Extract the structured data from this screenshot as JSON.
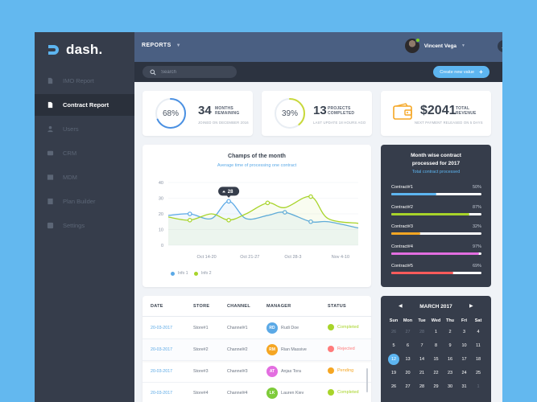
{
  "app": {
    "logo_text": "dash."
  },
  "sidebar": {
    "items": [
      {
        "label": "IMO Report",
        "icon": "document-icon",
        "active": false
      },
      {
        "label": "Contract Report",
        "icon": "document-icon",
        "active": true
      },
      {
        "label": "Users",
        "icon": "user-icon",
        "active": false
      },
      {
        "label": "CRM",
        "icon": "crm-icon",
        "active": false
      },
      {
        "label": "MDM",
        "icon": "mdm-icon",
        "active": false
      },
      {
        "label": "Plan Builder",
        "icon": "plan-icon",
        "active": false
      },
      {
        "label": "Settings",
        "icon": "settings-icon",
        "active": false
      }
    ]
  },
  "header": {
    "section": "REPORTS",
    "user_name": "Vincent Vega"
  },
  "toolbar": {
    "search_placeholder": "Search",
    "create_label": "Create new value"
  },
  "stats": [
    {
      "ring_value": "68%",
      "ring_fraction": 0.68,
      "big": "34",
      "label1": "MONTHS",
      "label2": "REMAINING",
      "sub": "JOINED ON DECEMBER 2016",
      "color": "#4a90e2"
    },
    {
      "ring_value": "39%",
      "ring_fraction": 0.39,
      "big": "13",
      "label1": "PROJECTS",
      "label2": "COMPLETED",
      "sub": "LAST UPDATE 18 HOURS AGO",
      "color": "#c9d93a"
    },
    {
      "big": "$2041",
      "label1": "TOTAL",
      "label2": "REVENUE",
      "sub": "NEXT PAYMENT RELEASED ON 5 DAYS",
      "color": "#f5a623"
    }
  ],
  "chart_data": {
    "type": "line",
    "title": "Champs of the month",
    "subtitle": "Average time of processing one contract",
    "categories": [
      "Oct 14-20",
      "Oct 21-27",
      "Oct 28-3",
      "Nov 4-10"
    ],
    "y_ticks": [
      "40",
      "30",
      "20",
      "10",
      "0"
    ],
    "ylim": [
      0,
      40
    ],
    "tooltip": "28",
    "series": [
      {
        "name": "Info 1",
        "color": "#5ba9e6",
        "x": [
          0,
          0.5,
          1,
          1.4,
          1.8,
          2.3,
          2.7,
          3.3,
          3.7,
          4.4
        ],
        "values": [
          19,
          20,
          17,
          28,
          17,
          19,
          21,
          15,
          15,
          11
        ]
      },
      {
        "name": "Info 2",
        "color": "#a8d42a",
        "x": [
          0,
          0.5,
          1,
          1.4,
          1.8,
          2.3,
          2.7,
          3.3,
          3.7,
          4.4
        ],
        "values": [
          18,
          16,
          20,
          16,
          20,
          27,
          24,
          31,
          17,
          14
        ]
      }
    ],
    "grid": true
  },
  "contracts": {
    "title_line1": "Month wise contract",
    "title_line2": "processed for 2017",
    "subtitle": "Total contract processed",
    "rows": [
      {
        "name": "Contract#1",
        "value": "50%",
        "fraction": 0.5,
        "color": "#5db5f0"
      },
      {
        "name": "Contract#2",
        "value": "87%",
        "fraction": 0.87,
        "color": "#a8d42a"
      },
      {
        "name": "Contract#3",
        "value": "32%",
        "fraction": 0.32,
        "color": "#f5a623"
      },
      {
        "name": "Contract#4",
        "value": "97%",
        "fraction": 0.97,
        "color": "#e36ee0"
      },
      {
        "name": "Contract#5",
        "value": "69%",
        "fraction": 0.69,
        "color": "#ff5b5b"
      }
    ]
  },
  "table": {
    "headers": [
      "DATE",
      "STORE",
      "CHANNEL",
      "MANAGER",
      "STATUS"
    ],
    "rows": [
      {
        "date": "20-03-2017",
        "store": "Store#1",
        "channel": "Channel#1",
        "initials": "RD",
        "manager": "Rudi Doe",
        "status": "Completed",
        "avatar_color": "#5ba9e6",
        "status_color": "#a8d42a"
      },
      {
        "date": "20-03-2017",
        "store": "Store#2",
        "channel": "Channel#2",
        "initials": "RM",
        "manager": "Rian Massive",
        "status": "Rejected",
        "avatar_color": "#f5a623",
        "status_color": "#ff7b7b"
      },
      {
        "date": "20-03-2017",
        "store": "Store#3",
        "channel": "Channel#3",
        "initials": "AT",
        "manager": "Anjas Tora",
        "status": "Pending",
        "avatar_color": "#e36ee0",
        "status_color": "#f5a623"
      },
      {
        "date": "20-03-2017",
        "store": "Store#4",
        "channel": "Channel#4",
        "initials": "LK",
        "manager": "Lauren Kiev",
        "status": "Completed",
        "avatar_color": "#7ecb3a",
        "status_color": "#a8d42a"
      }
    ]
  },
  "calendar": {
    "month": "MARCH 2017",
    "dows": [
      "Sun",
      "Mon",
      "Tue",
      "Wed",
      "Thu",
      "Fri",
      "Sat"
    ],
    "weeks": [
      [
        "26",
        "27",
        "28",
        "1",
        "2",
        "3",
        "4"
      ],
      [
        "5",
        "6",
        "7",
        "8",
        "9",
        "10",
        "11"
      ],
      [
        "12",
        "13",
        "14",
        "15",
        "16",
        "17",
        "18"
      ],
      [
        "19",
        "20",
        "21",
        "22",
        "23",
        "24",
        "25"
      ],
      [
        "26",
        "27",
        "28",
        "29",
        "30",
        "31",
        "1"
      ]
    ],
    "muted_first_row": [
      0,
      1,
      2
    ],
    "selected": "12"
  }
}
